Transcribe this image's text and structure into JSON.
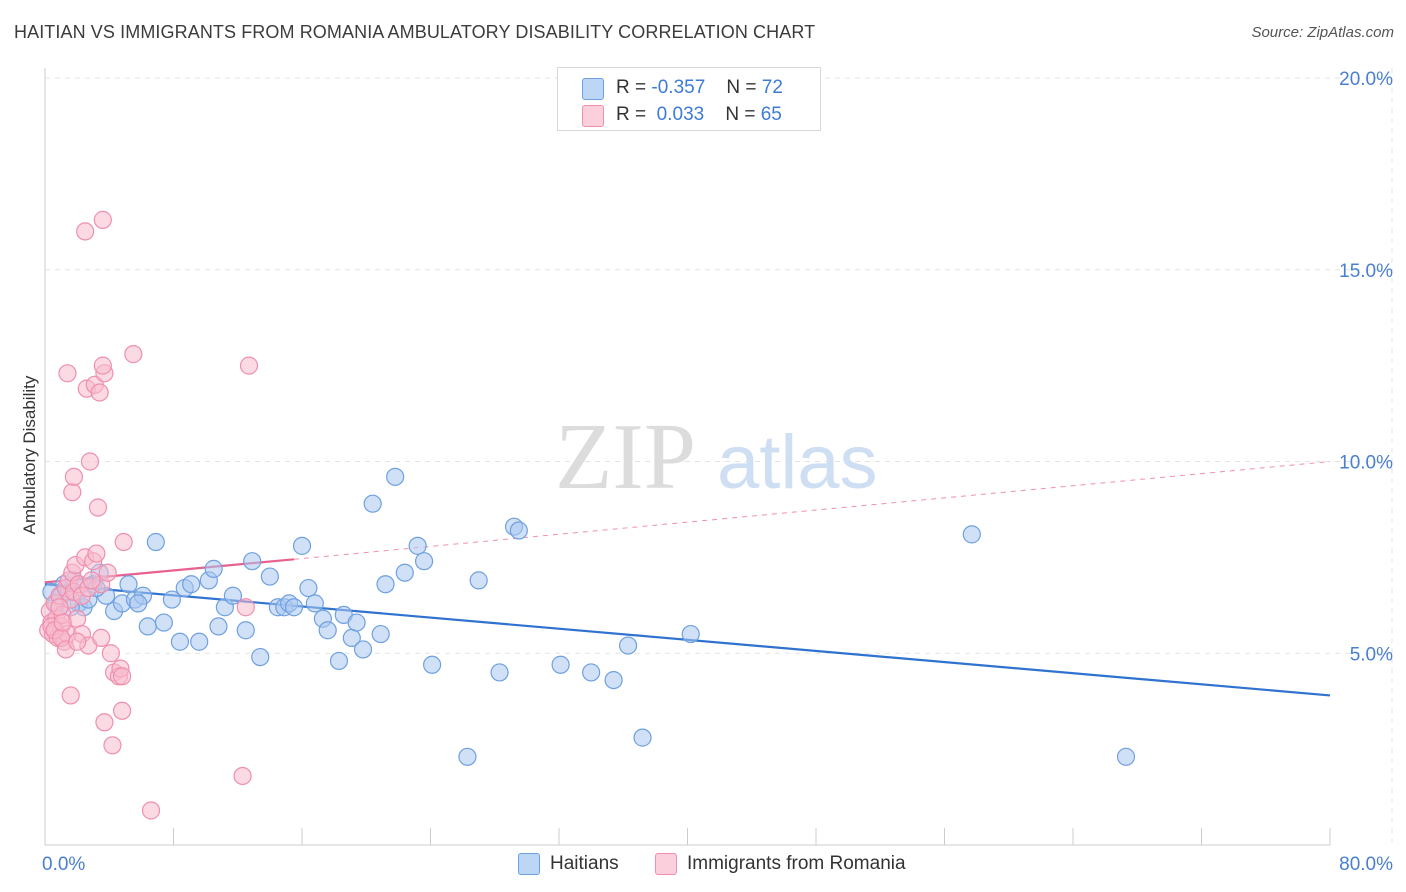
{
  "header": {
    "title": "HAITIAN VS IMMIGRANTS FROM ROMANIA AMBULATORY DISABILITY CORRELATION CHART",
    "source": "Source: ZipAtlas.com"
  },
  "watermark": {
    "zip": "ZIP",
    "atlas": "atlas"
  },
  "legend": {
    "rows": [
      {
        "r_label": "R =",
        "r_value": "-0.357",
        "n_label": "N =",
        "n_value": "72"
      },
      {
        "r_label": "R =",
        "r_value": " 0.033",
        "n_label": "N =",
        "n_value": "65"
      }
    ]
  },
  "colors": {
    "haitians_fill": "#a9c8f0",
    "haitians_stroke": "#6fa0e0",
    "haitians_line": "#2f72d0",
    "romania_fill": "#f7bccd",
    "romania_stroke": "#ef8fae",
    "romania_line": "#e8608d",
    "tick_text": "#4a7fd0",
    "grid": "#e3e3e3"
  },
  "chart_data": {
    "type": "scatter",
    "title": "HAITIAN VS IMMIGRANTS FROM ROMANIA AMBULATORY DISABILITY CORRELATION CHART",
    "xlabel": "",
    "ylabel": "Ambulatory Disability",
    "xlim": [
      0,
      80
    ],
    "ylim": [
      0,
      20
    ],
    "x_tick_labels": [
      "0.0%",
      "80.0%"
    ],
    "y_ticks": [
      5,
      10,
      15,
      20
    ],
    "y_tick_labels": [
      "5.0%",
      "10.0%",
      "15.0%",
      "20.0%"
    ],
    "grid": true,
    "legend_position": "top-center",
    "series": [
      {
        "name": "Haitians",
        "r": -0.357,
        "n": 72,
        "trend": {
          "x": [
            0,
            80
          ],
          "y": [
            6.8,
            3.9
          ]
        },
        "points": [
          [
            0.4,
            6.6
          ],
          [
            0.7,
            6.3
          ],
          [
            1.0,
            6.5
          ],
          [
            1.2,
            6.8
          ],
          [
            1.5,
            6.6
          ],
          [
            1.8,
            6.9
          ],
          [
            2.1,
            6.3
          ],
          [
            2.4,
            6.2
          ],
          [
            2.7,
            6.4
          ],
          [
            3.0,
            6.8
          ],
          [
            3.4,
            7.1
          ],
          [
            3.8,
            6.5
          ],
          [
            4.3,
            6.1
          ],
          [
            4.8,
            6.3
          ],
          [
            5.2,
            6.8
          ],
          [
            5.6,
            6.4
          ],
          [
            6.1,
            6.5
          ],
          [
            6.4,
            5.7
          ],
          [
            6.9,
            7.9
          ],
          [
            7.4,
            5.8
          ],
          [
            7.9,
            6.4
          ],
          [
            8.4,
            5.3
          ],
          [
            8.7,
            6.7
          ],
          [
            9.1,
            6.8
          ],
          [
            9.6,
            5.3
          ],
          [
            10.2,
            6.9
          ],
          [
            10.5,
            7.2
          ],
          [
            10.8,
            5.7
          ],
          [
            11.2,
            6.2
          ],
          [
            11.7,
            6.5
          ],
          [
            12.5,
            5.6
          ],
          [
            12.9,
            7.4
          ],
          [
            13.4,
            4.9
          ],
          [
            14.0,
            7.0
          ],
          [
            14.5,
            6.2
          ],
          [
            14.9,
            6.2
          ],
          [
            15.2,
            6.3
          ],
          [
            15.5,
            6.2
          ],
          [
            16.0,
            7.8
          ],
          [
            16.4,
            6.7
          ],
          [
            16.8,
            6.3
          ],
          [
            17.3,
            5.9
          ],
          [
            17.6,
            5.6
          ],
          [
            18.3,
            4.8
          ],
          [
            18.6,
            6.0
          ],
          [
            19.1,
            5.4
          ],
          [
            19.4,
            5.8
          ],
          [
            19.8,
            5.1
          ],
          [
            20.4,
            8.9
          ],
          [
            20.9,
            5.5
          ],
          [
            21.2,
            6.8
          ],
          [
            21.8,
            9.6
          ],
          [
            22.4,
            7.1
          ],
          [
            23.2,
            7.8
          ],
          [
            23.6,
            7.4
          ],
          [
            24.1,
            4.7
          ],
          [
            27.0,
            6.9
          ],
          [
            26.3,
            2.3
          ],
          [
            28.3,
            4.5
          ],
          [
            29.2,
            8.3
          ],
          [
            29.5,
            8.2
          ],
          [
            32.1,
            4.7
          ],
          [
            34.0,
            4.5
          ],
          [
            35.4,
            4.3
          ],
          [
            36.3,
            5.2
          ],
          [
            37.2,
            2.8
          ],
          [
            40.2,
            5.5
          ],
          [
            57.7,
            8.1
          ],
          [
            67.3,
            2.3
          ],
          [
            1.6,
            6.2
          ],
          [
            3.2,
            6.7
          ],
          [
            5.8,
            6.3
          ]
        ]
      },
      {
        "name": "Immigrants from Romania",
        "r": 0.033,
        "n": 65,
        "trend": {
          "x": [
            0,
            15.5
          ],
          "y": [
            6.85,
            7.45
          ]
        },
        "trend_dashed": {
          "x": [
            15.5,
            80
          ],
          "y": [
            7.45,
            10.0
          ]
        },
        "points": [
          [
            0.2,
            5.6
          ],
          [
            0.3,
            6.1
          ],
          [
            0.4,
            5.8
          ],
          [
            0.5,
            5.5
          ],
          [
            0.6,
            6.3
          ],
          [
            0.7,
            5.9
          ],
          [
            0.8,
            5.4
          ],
          [
            0.9,
            6.5
          ],
          [
            1.0,
            5.7
          ],
          [
            1.1,
            6.0
          ],
          [
            1.2,
            5.3
          ],
          [
            1.3,
            6.7
          ],
          [
            1.4,
            5.5
          ],
          [
            1.5,
            6.9
          ],
          [
            1.6,
            6.4
          ],
          [
            1.7,
            7.1
          ],
          [
            1.8,
            6.6
          ],
          [
            1.9,
            7.3
          ],
          [
            2.0,
            5.9
          ],
          [
            2.1,
            6.8
          ],
          [
            2.3,
            6.5
          ],
          [
            2.5,
            7.5
          ],
          [
            2.7,
            6.7
          ],
          [
            3.0,
            7.4
          ],
          [
            3.2,
            7.6
          ],
          [
            3.5,
            6.8
          ],
          [
            0.4,
            5.7
          ],
          [
            0.6,
            5.6
          ],
          [
            1.0,
            5.4
          ],
          [
            1.3,
            5.1
          ],
          [
            1.6,
            3.9
          ],
          [
            1.7,
            9.2
          ],
          [
            1.8,
            9.6
          ],
          [
            2.3,
            5.5
          ],
          [
            2.7,
            5.2
          ],
          [
            2.8,
            10.0
          ],
          [
            3.3,
            8.8
          ],
          [
            3.5,
            5.4
          ],
          [
            4.1,
            5.0
          ],
          [
            4.3,
            4.5
          ],
          [
            4.6,
            4.4
          ],
          [
            4.7,
            4.6
          ],
          [
            4.8,
            4.4
          ],
          [
            4.9,
            7.9
          ],
          [
            3.7,
            3.2
          ],
          [
            4.2,
            2.6
          ],
          [
            4.8,
            3.5
          ],
          [
            6.6,
            0.9
          ],
          [
            12.3,
            1.8
          ],
          [
            12.5,
            6.2
          ],
          [
            12.7,
            12.5
          ],
          [
            1.4,
            12.3
          ],
          [
            2.6,
            11.9
          ],
          [
            3.1,
            12.0
          ],
          [
            3.4,
            11.8
          ],
          [
            3.7,
            12.3
          ],
          [
            3.6,
            12.5
          ],
          [
            5.5,
            12.8
          ],
          [
            2.5,
            16.0
          ],
          [
            3.6,
            16.3
          ],
          [
            0.9,
            6.2
          ],
          [
            1.1,
            5.8
          ],
          [
            2.0,
            5.3
          ],
          [
            2.9,
            6.9
          ],
          [
            3.9,
            7.1
          ]
        ]
      }
    ]
  }
}
